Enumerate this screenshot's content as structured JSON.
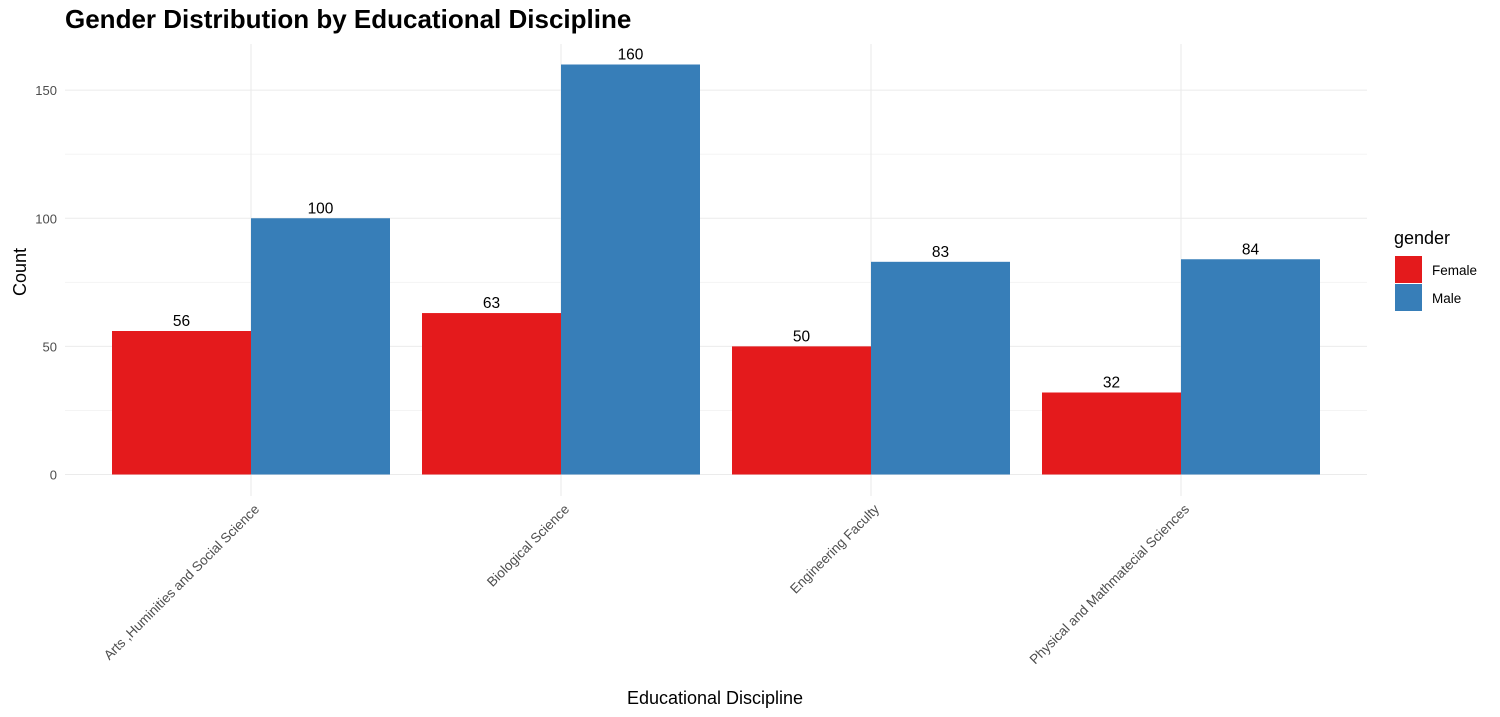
{
  "chart_data": {
    "type": "bar",
    "title": "Gender Distribution by Educational Discipline",
    "xlabel": "Educational Discipline",
    "ylabel": "Count",
    "categories": [
      "Arts ,Huminities and Social Science",
      "Biological Science",
      "Engineering Faculty",
      "Physical and Mathmatecial Sciences"
    ],
    "series": [
      {
        "name": "Female",
        "color": "#e41a1c",
        "values": [
          56,
          63,
          50,
          32
        ]
      },
      {
        "name": "Male",
        "color": "#377eb8",
        "values": [
          100,
          160,
          83,
          84
        ]
      }
    ],
    "ylim": [
      0,
      168
    ],
    "yticks": [
      0,
      50,
      100,
      150
    ],
    "grid": true,
    "legend": {
      "title": "gender",
      "position": "right"
    },
    "data_labels": true
  }
}
